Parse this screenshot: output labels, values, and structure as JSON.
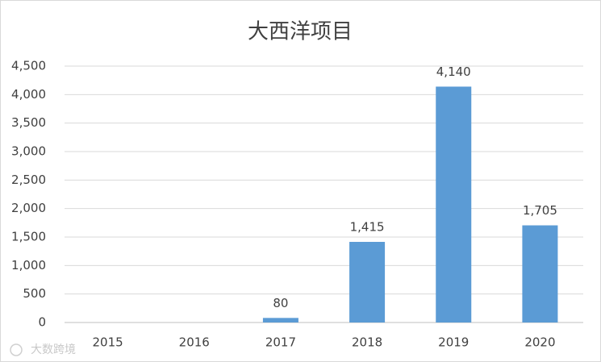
{
  "chart_data": {
    "type": "bar",
    "title": "大西洋项目",
    "categories": [
      "2015",
      "2016",
      "2017",
      "2018",
      "2019",
      "2020"
    ],
    "values": [
      null,
      null,
      80,
      1415,
      4140,
      1705
    ],
    "value_labels": [
      null,
      null,
      "80",
      "1,415",
      "4,140",
      "1,705"
    ],
    "color": "#5b9bd5",
    "ylim": [
      0,
      4500
    ],
    "yticks": [
      0,
      500,
      {
        "value": 1000,
        "label": "1,000"
      },
      {
        "value": 1500,
        "label": "1,500"
      },
      {
        "value": 2000,
        "label": "2,000"
      },
      {
        "value": 2500,
        "label": "2,500"
      },
      {
        "value": 3000,
        "label": "3,000"
      },
      {
        "value": 3500,
        "label": "3,500"
      },
      {
        "value": 4000,
        "label": "4,000"
      },
      {
        "value": 4500,
        "label": "4,500"
      }
    ],
    "grid": true
  },
  "watermark": "大数跨境"
}
